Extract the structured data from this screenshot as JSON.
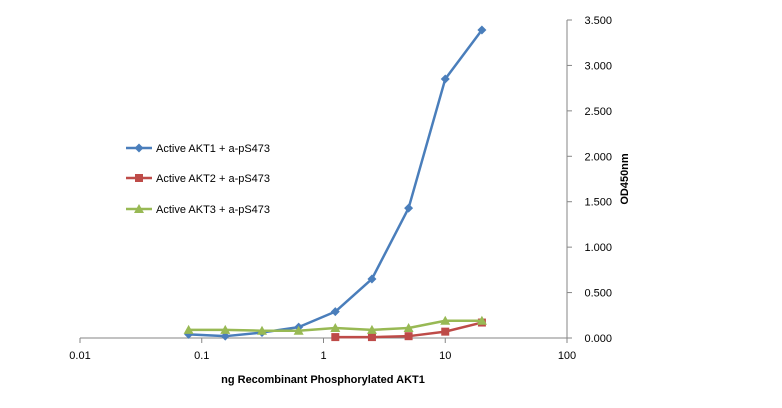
{
  "chart_data": {
    "type": "line",
    "title": "",
    "xlabel": "ng Recombinant  Phosphorylated  AKT1",
    "ylabel": "OD450nm",
    "x_scale": "log",
    "xlim": [
      0.01,
      100
    ],
    "ylim": [
      0,
      3.5
    ],
    "x_ticks": [
      "0.01",
      "0.1",
      "1",
      "10",
      "100"
    ],
    "y_ticks": [
      "0.000",
      "0.500",
      "1.000",
      "1.500",
      "2.000",
      "2.500",
      "3.000",
      "3.500"
    ],
    "y_axis_position": "right",
    "grid": false,
    "legend_position": "center-left",
    "series": [
      {
        "name": "Active AKT1 + a-pS473",
        "color": "#4a7ebb",
        "marker": "diamond",
        "x": [
          0.078,
          0.156,
          0.3125,
          0.625,
          1.25,
          2.5,
          5,
          10,
          20
        ],
        "y": [
          0.04,
          0.02,
          0.06,
          0.12,
          0.29,
          0.65,
          1.43,
          2.85,
          3.39
        ]
      },
      {
        "name": "Active AKT2 + a-pS473",
        "color": "#be4b48",
        "marker": "square",
        "x": [
          1.25,
          2.5,
          5,
          10,
          20
        ],
        "y": [
          0.01,
          0.01,
          0.02,
          0.07,
          0.17
        ]
      },
      {
        "name": "Active AKT3 + a-pS473",
        "color": "#98b954",
        "marker": "triangle",
        "x": [
          0.078,
          0.156,
          0.3125,
          0.625,
          1.25,
          2.5,
          5,
          10,
          20
        ],
        "y": [
          0.09,
          0.09,
          0.08,
          0.08,
          0.11,
          0.09,
          0.11,
          0.19,
          0.19
        ]
      }
    ]
  }
}
